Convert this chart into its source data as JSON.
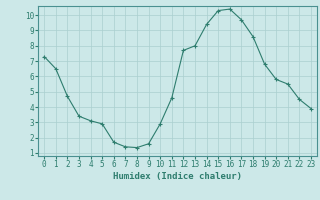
{
  "x": [
    0,
    1,
    2,
    3,
    4,
    5,
    6,
    7,
    8,
    9,
    10,
    11,
    12,
    13,
    14,
    15,
    16,
    17,
    18,
    19,
    20,
    21,
    22,
    23
  ],
  "y": [
    7.3,
    6.5,
    4.7,
    3.4,
    3.1,
    2.9,
    1.7,
    1.4,
    1.35,
    1.6,
    2.9,
    4.6,
    7.7,
    8.0,
    9.4,
    10.3,
    10.4,
    9.7,
    8.6,
    6.8,
    5.8,
    5.5,
    4.5,
    3.9
  ],
  "xlabel": "Humidex (Indice chaleur)",
  "xlim": [
    -0.5,
    23.5
  ],
  "ylim": [
    0.8,
    10.6
  ],
  "yticks": [
    1,
    2,
    3,
    4,
    5,
    6,
    7,
    8,
    9,
    10
  ],
  "xticks": [
    0,
    1,
    2,
    3,
    4,
    5,
    6,
    7,
    8,
    9,
    10,
    11,
    12,
    13,
    14,
    15,
    16,
    17,
    18,
    19,
    20,
    21,
    22,
    23
  ],
  "line_color": "#2e7d6e",
  "marker": "+",
  "bg_color": "#cce8e8",
  "grid_color": "#aacfcf",
  "spine_color": "#4a9090",
  "xlabel_color": "#2e7d6e",
  "tick_color": "#2e7d6e",
  "font_size_label": 6.5,
  "font_size_tick": 5.5
}
